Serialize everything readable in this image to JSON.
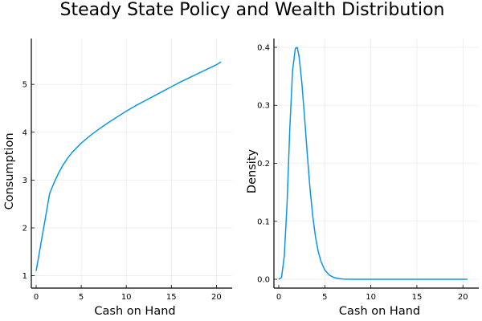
{
  "figure": {
    "title": "Steady State Policy and Wealth Distribution"
  },
  "colors": {
    "series": "#009AFA",
    "grid": "#e6e6e6",
    "axis": "#000000"
  },
  "chart_data": [
    {
      "type": "line",
      "title": "",
      "xlabel": "Cash on Hand",
      "ylabel": "Consumption",
      "xlim": [
        0,
        20.5
      ],
      "ylim": [
        1,
        5.7
      ],
      "xticks": [
        0,
        5,
        10,
        15,
        20
      ],
      "yticks": [
        1,
        2,
        3,
        4,
        5
      ],
      "grid": true,
      "legend": "none",
      "series": [
        {
          "x": [
            0.0,
            1.5,
            2.0,
            2.5,
            3.0,
            3.5,
            4.0,
            5.0,
            6.0,
            7.0,
            8.0,
            9.0,
            10.0,
            11.0,
            12.0,
            13.0,
            14.0,
            15.0,
            16.0,
            17.0,
            18.0,
            19.0,
            20.0,
            20.5
          ],
          "y": [
            1.1,
            2.72,
            2.95,
            3.15,
            3.32,
            3.46,
            3.58,
            3.77,
            3.93,
            4.07,
            4.2,
            4.32,
            4.44,
            4.55,
            4.65,
            4.75,
            4.85,
            4.95,
            5.05,
            5.14,
            5.23,
            5.32,
            5.41,
            5.47
          ]
        }
      ]
    },
    {
      "type": "line",
      "title": "",
      "xlabel": "Cash on Hand",
      "ylabel": "Density",
      "xlim": [
        0,
        20.5
      ],
      "ylim": [
        0,
        0.4
      ],
      "xticks": [
        0,
        5,
        10,
        15,
        20
      ],
      "yticks": [
        0.0,
        0.1,
        0.2,
        0.3,
        0.4
      ],
      "ytick_labels": [
        "0.0",
        "0.1",
        "0.2",
        "0.3",
        "0.4"
      ],
      "grid": true,
      "legend": "none",
      "series": [
        {
          "x": [
            0.0,
            0.3,
            0.6,
            0.9,
            1.2,
            1.5,
            1.8,
            2.0,
            2.2,
            2.5,
            2.8,
            3.1,
            3.4,
            3.7,
            4.0,
            4.3,
            4.6,
            5.0,
            5.5,
            6.0,
            6.5,
            7.0,
            8.0,
            10.0,
            12.0,
            15.0,
            18.0,
            20.5
          ],
          "y": [
            0.0,
            0.003,
            0.04,
            0.13,
            0.26,
            0.36,
            0.398,
            0.4,
            0.385,
            0.34,
            0.28,
            0.215,
            0.155,
            0.108,
            0.072,
            0.047,
            0.03,
            0.016,
            0.007,
            0.003,
            0.0012,
            0.0004,
            0.0001,
            0.0,
            0.0,
            0.0,
            0.0,
            0.0
          ]
        }
      ]
    }
  ]
}
